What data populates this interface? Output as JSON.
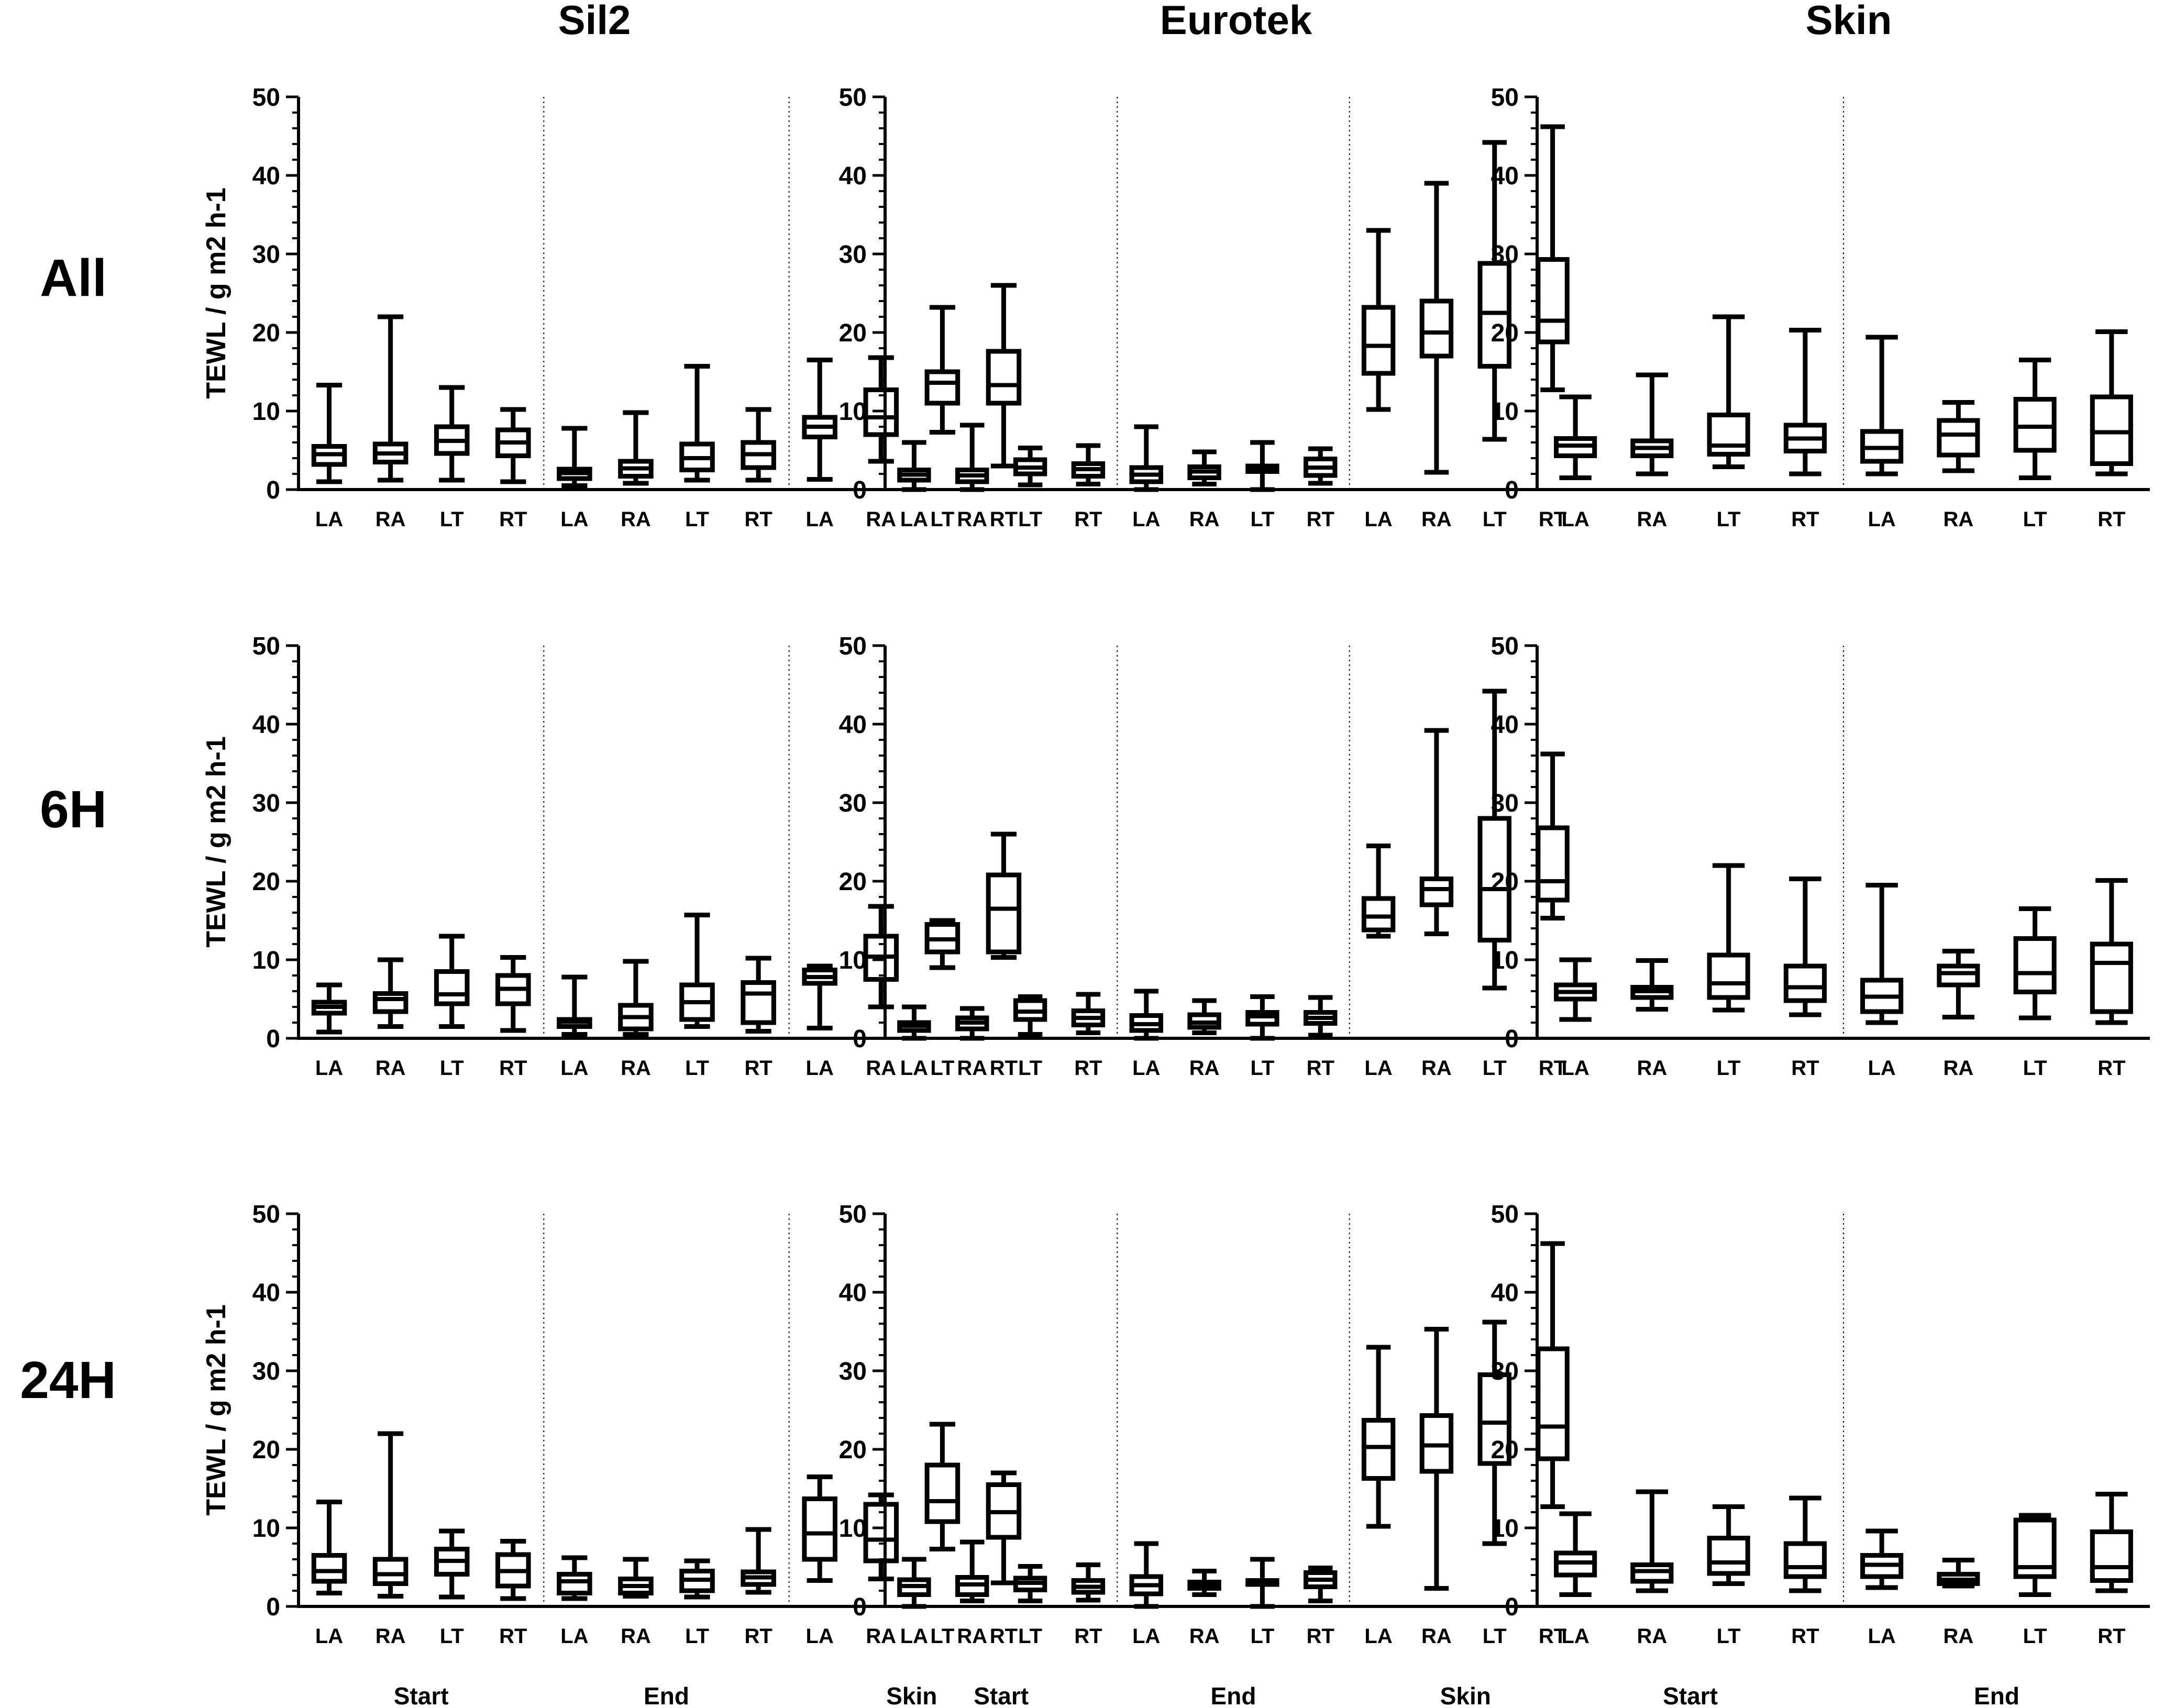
{
  "chart_data": {
    "type": "box",
    "columns": [
      "Sil2",
      "Eurotek",
      "Skin"
    ],
    "rows": [
      "All",
      "6H",
      "24H"
    ],
    "ylabel": "TEWL / g m2 h-1",
    "ylim": [
      0,
      50
    ],
    "yticks": [
      "0",
      "10",
      "20",
      "30",
      "40",
      "50"
    ],
    "panels": [
      {
        "row": "All",
        "column": "Sil2",
        "groups": [
          "Start",
          "End",
          "Skin"
        ],
        "categories": [
          "LA",
          "RA",
          "LT",
          "RT",
          "LA",
          "RA",
          "LT",
          "RT",
          "LA",
          "RA",
          "LT",
          "RT"
        ],
        "boxes": [
          [
            1,
            3.2,
            4.5,
            5.5,
            13.3
          ],
          [
            1.2,
            3.5,
            4.6,
            5.8,
            22
          ],
          [
            1.2,
            4.6,
            6.2,
            8,
            13
          ],
          [
            1,
            4.3,
            6,
            7.6,
            10.2
          ],
          [
            0.5,
            1.4,
            2.1,
            2.6,
            7.8
          ],
          [
            0.8,
            1.7,
            2.7,
            3.6,
            9.8
          ],
          [
            1.2,
            2.5,
            4,
            5.8,
            15.7
          ],
          [
            1.2,
            2.8,
            4.5,
            6,
            10.2
          ],
          [
            1.3,
            6.7,
            8,
            9.2,
            16.5
          ],
          [
            3.6,
            7,
            9.2,
            12.7,
            16.8
          ],
          [
            7.3,
            11,
            13.6,
            15,
            23.2
          ],
          [
            3,
            11,
            13.3,
            17.6,
            26
          ]
        ]
      },
      {
        "row": "All",
        "column": "Eurotek",
        "groups": [
          "Start",
          "End",
          "Skin"
        ],
        "categories": [
          "LA",
          "RA",
          "LT",
          "RT",
          "LA",
          "RA",
          "LT",
          "RT",
          "LA",
          "RA",
          "LT",
          "RT"
        ],
        "boxes": [
          [
            0,
            1.2,
            1.9,
            2.5,
            6
          ],
          [
            0,
            1,
            1.8,
            2.5,
            8.2
          ],
          [
            0.6,
            2,
            2.8,
            3.8,
            5.3
          ],
          [
            0.7,
            1.7,
            2.6,
            3.3,
            5.6
          ],
          [
            0,
            1,
            1.9,
            2.8,
            8
          ],
          [
            0.7,
            1.5,
            2.3,
            2.9,
            4.8
          ],
          [
            0,
            2.3,
            2.8,
            3,
            6
          ],
          [
            0.8,
            1.8,
            2.8,
            3.9,
            5.2
          ],
          [
            10.2,
            14.8,
            18.3,
            23.2,
            33
          ],
          [
            2.2,
            17,
            20,
            24,
            39
          ],
          [
            6.4,
            15.7,
            22.5,
            28.8,
            44.2
          ],
          [
            12.7,
            18.8,
            21.5,
            29.3,
            46.2
          ]
        ]
      },
      {
        "row": "All",
        "column": "Skin",
        "groups": [
          "Start",
          "End"
        ],
        "categories": [
          "LA",
          "RA",
          "LT",
          "RT",
          "LA",
          "RA",
          "LT",
          "RT"
        ],
        "boxes": [
          [
            1.5,
            4.3,
            5.6,
            6.5,
            11.8
          ],
          [
            2,
            4.3,
            5.3,
            6.2,
            14.6
          ],
          [
            2.9,
            4.5,
            5.6,
            9.5,
            22
          ],
          [
            2,
            4.9,
            6.5,
            8.2,
            20.3
          ],
          [
            2,
            3.6,
            5.3,
            7.4,
            19.4
          ],
          [
            2.4,
            4.4,
            7,
            8.8,
            11.1
          ],
          [
            1.5,
            5,
            8,
            11.5,
            16.5
          ],
          [
            2,
            3.3,
            7.3,
            11.8,
            20.1
          ]
        ]
      },
      {
        "row": "6H",
        "column": "Sil2",
        "groups": [
          "Start",
          "End",
          "Skin"
        ],
        "categories": [
          "LA",
          "RA",
          "LT",
          "RT",
          "LA",
          "RA",
          "LT",
          "RT",
          "LA",
          "RA",
          "LT",
          "RT"
        ],
        "boxes": [
          [
            0.8,
            3.2,
            4,
            4.6,
            6.8
          ],
          [
            1.5,
            3.4,
            5,
            5.7,
            10
          ],
          [
            1.5,
            4.4,
            5.6,
            8.5,
            13
          ],
          [
            1,
            4.4,
            6.3,
            8,
            10.3
          ],
          [
            0.5,
            1.5,
            2.1,
            2.4,
            7.8
          ],
          [
            0.5,
            1.2,
            2.7,
            4.2,
            9.8
          ],
          [
            1.5,
            2.4,
            4.6,
            6.8,
            15.7
          ],
          [
            0.9,
            2,
            5.7,
            7.1,
            10.2
          ],
          [
            1.3,
            7,
            7.8,
            8.7,
            9.2
          ],
          [
            4,
            7.5,
            10.4,
            13,
            16.8
          ],
          [
            9,
            11,
            12.6,
            14.5,
            15
          ],
          [
            10.3,
            11,
            16.5,
            20.8,
            26
          ]
        ]
      },
      {
        "row": "6H",
        "column": "Eurotek",
        "groups": [
          "Start",
          "End",
          "Skin"
        ],
        "categories": [
          "LA",
          "RA",
          "LT",
          "RT",
          "LA",
          "RA",
          "LT",
          "RT",
          "LA",
          "RA",
          "LT",
          "RT"
        ],
        "boxes": [
          [
            0,
            1,
            1.6,
            2,
            4
          ],
          [
            0,
            1.2,
            2,
            2.6,
            3.8
          ],
          [
            0.5,
            2.4,
            3.4,
            4.8,
            5.3
          ],
          [
            0.7,
            1.7,
            2.6,
            3.5,
            5.6
          ],
          [
            0,
            1,
            1.8,
            2.9,
            6
          ],
          [
            0.7,
            1.4,
            2,
            3,
            4.8
          ],
          [
            0,
            1.8,
            2.8,
            3.3,
            5.3
          ],
          [
            0.4,
            1.9,
            2.6,
            3.3,
            5.2
          ],
          [
            13,
            13.8,
            15.5,
            17.8,
            24.5
          ],
          [
            13.3,
            17,
            19,
            20.3,
            39.2
          ],
          [
            6.4,
            12.5,
            19,
            28,
            44.2
          ],
          [
            15.3,
            17.6,
            20,
            26.8,
            36.2
          ]
        ]
      },
      {
        "row": "6H",
        "column": "Skin",
        "groups": [
          "Start",
          "End"
        ],
        "categories": [
          "LA",
          "RA",
          "LT",
          "RT",
          "LA",
          "RA",
          "LT",
          "RT"
        ],
        "boxes": [
          [
            2.4,
            5,
            5.9,
            6.8,
            10
          ],
          [
            3.7,
            5.2,
            6,
            6.5,
            9.9
          ],
          [
            3.6,
            5.2,
            7,
            10.6,
            22
          ],
          [
            3,
            4.8,
            6.5,
            9.2,
            20.3
          ],
          [
            2,
            3.4,
            5.3,
            7.4,
            19.5
          ],
          [
            2.7,
            6.8,
            8.3,
            9.2,
            11.1
          ],
          [
            2.6,
            5.9,
            8.3,
            12.7,
            16.5
          ],
          [
            2,
            3.4,
            9.6,
            12,
            20.1
          ]
        ]
      },
      {
        "row": "24H",
        "column": "Sil2",
        "groups": [
          "Start",
          "End",
          "Skin"
        ],
        "categories": [
          "LA",
          "RA",
          "LT",
          "RT",
          "LA",
          "RA",
          "LT",
          "RT",
          "LA",
          "RA",
          "LT",
          "RT"
        ],
        "boxes": [
          [
            1.7,
            3.2,
            4.5,
            6.5,
            13.3
          ],
          [
            1.3,
            2.9,
            4.1,
            6,
            22
          ],
          [
            1.2,
            4.1,
            5.8,
            7.3,
            9.6
          ],
          [
            1,
            2.6,
            4.5,
            6.6,
            8.3
          ],
          [
            1,
            1.7,
            3.2,
            4.1,
            6.2
          ],
          [
            1.3,
            1.7,
            2.6,
            3.5,
            6
          ],
          [
            1.2,
            2,
            3.4,
            4.5,
            5.8
          ],
          [
            1.8,
            2.8,
            3.7,
            4.4,
            9.8
          ],
          [
            3.3,
            6,
            9.3,
            13.7,
            16.5
          ],
          [
            3.5,
            5.8,
            8.5,
            13,
            14.2
          ],
          [
            7.3,
            10.8,
            13.4,
            18,
            23.2
          ],
          [
            3,
            8.8,
            12,
            15.5,
            17
          ]
        ]
      },
      {
        "row": "24H",
        "column": "Eurotek",
        "groups": [
          "Start",
          "End",
          "Skin"
        ],
        "categories": [
          "LA",
          "RA",
          "LT",
          "RT",
          "LA",
          "RA",
          "LT",
          "RT",
          "LA",
          "RA",
          "LT",
          "RT"
        ],
        "boxes": [
          [
            0,
            1.5,
            2.6,
            3.4,
            6
          ],
          [
            0.7,
            1.5,
            2.8,
            3.7,
            8.2
          ],
          [
            0.7,
            2.1,
            3,
            3.6,
            5.1
          ],
          [
            0.8,
            1.8,
            2.5,
            3.3,
            5.3
          ],
          [
            0,
            1.6,
            2.7,
            3.8,
            8
          ],
          [
            1.5,
            2.3,
            2.7,
            3.1,
            4.5
          ],
          [
            0,
            2.8,
            3,
            3.3,
            6
          ],
          [
            0.7,
            2.5,
            3.4,
            4.3,
            4.9
          ],
          [
            10.2,
            16.3,
            20.3,
            23.7,
            33
          ],
          [
            2.3,
            17.2,
            20.5,
            24.3,
            35.3
          ],
          [
            8,
            18.2,
            23.4,
            29.5,
            36.2
          ],
          [
            12.7,
            18.8,
            22.9,
            32.8,
            46.2
          ]
        ]
      },
      {
        "row": "24H",
        "column": "Skin",
        "groups": [
          "Start",
          "End"
        ],
        "categories": [
          "LA",
          "RA",
          "LT",
          "RT",
          "LA",
          "RA",
          "LT",
          "RT"
        ],
        "boxes": [
          [
            1.5,
            4,
            5.6,
            6.8,
            11.8
          ],
          [
            2,
            3.2,
            4.5,
            5.3,
            14.6
          ],
          [
            2.9,
            4.2,
            5.6,
            8.7,
            12.7
          ],
          [
            2,
            3.8,
            5,
            8,
            13.8
          ],
          [
            2.4,
            3.8,
            5.3,
            6.5,
            9.6
          ],
          [
            2.6,
            2.9,
            3.4,
            4.1,
            5.9
          ],
          [
            1.5,
            3.8,
            5,
            11,
            11.6
          ],
          [
            2,
            3.3,
            5,
            9.5,
            14.3
          ]
        ]
      }
    ]
  }
}
